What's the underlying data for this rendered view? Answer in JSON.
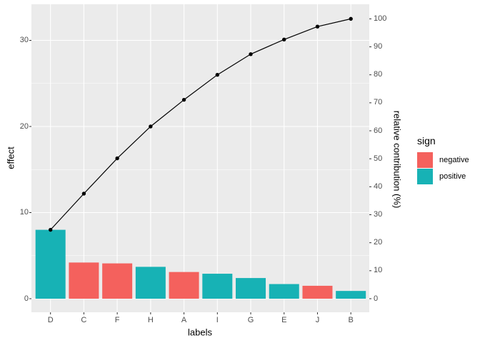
{
  "chart_data": {
    "type": "bar",
    "subtype": "pareto-chart-with-cumulative-line",
    "title": "",
    "xlabel": "labels",
    "ylabel_left": "effect",
    "ylabel_right": "relative contribution (%)",
    "categories": [
      "D",
      "C",
      "F",
      "H",
      "A",
      "I",
      "G",
      "E",
      "J",
      "B"
    ],
    "series": [
      {
        "name": "effect bars",
        "values": [
          8.0,
          4.2,
          4.1,
          3.7,
          3.1,
          2.9,
          2.4,
          1.7,
          1.5,
          0.9
        ],
        "signs": [
          "positive",
          "negative",
          "negative",
          "positive",
          "negative",
          "positive",
          "positive",
          "positive",
          "negative",
          "positive"
        ]
      },
      {
        "name": "cumulative relative contribution line (%)",
        "values": [
          24.6,
          37.5,
          50.2,
          61.5,
          71.1,
          80.0,
          87.4,
          92.6,
          97.2,
          100.0
        ]
      }
    ],
    "left_axis_ticks": [
      0,
      10,
      20,
      30
    ],
    "left_axis_minor_gridlines": [
      5,
      15,
      25
    ],
    "right_axis_ticks": [
      0,
      10,
      20,
      30,
      40,
      50,
      60,
      70,
      80,
      90,
      100
    ],
    "ylim_left": [
      -1.6,
      34.2
    ],
    "grid": true,
    "legend_position": "right",
    "legend": {
      "title": "sign",
      "items": [
        {
          "label": "negative",
          "color": "#f4615d"
        },
        {
          "label": "positive",
          "color": "#17b2b5"
        }
      ]
    },
    "colors": {
      "negative": "#f4615d",
      "positive": "#17b2b5",
      "line": "#000000",
      "point": "#000000",
      "panel_background": "#ebebeb",
      "gridline": "#ffffff",
      "tick_text": "#4d4d4d",
      "tick_mark": "#333333",
      "plot_background": "#ffffff"
    }
  }
}
